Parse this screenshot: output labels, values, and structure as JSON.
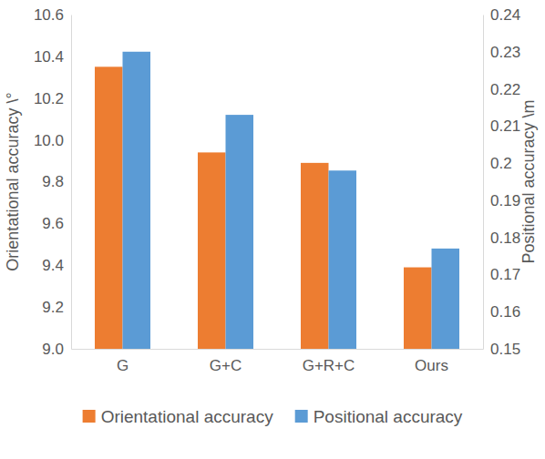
{
  "chart_data": {
    "type": "bar",
    "categories": [
      "G",
      "G+C",
      "G+R+C",
      "Ours"
    ],
    "series": [
      {
        "name": "Orientational accuracy",
        "color": "#ed7d31",
        "values": [
          10.35,
          9.94,
          9.89,
          9.39
        ]
      },
      {
        "name": "Positional accuracy",
        "color": "#5b9bd5",
        "values": [
          0.23,
          0.213,
          0.198,
          0.177
        ],
        "axis": "y2"
      }
    ],
    "y_label": "Orientational accuracy \\°",
    "y2_label": "Positional accuracy \\m",
    "ylim": [
      9.0,
      10.6
    ],
    "yticks": [
      {
        "value": 9,
        "label": "9.0"
      },
      9.2,
      9.4,
      9.6,
      9.8,
      {
        "value": 10,
        "label": "10.0"
      },
      10.2,
      10.4,
      10.6
    ],
    "y2lim": [
      0.15,
      0.24
    ],
    "y2ticks": [
      0.15,
      0.16,
      0.17,
      0.18,
      0.19,
      0.2,
      0.21,
      0.22,
      0.23,
      0.24
    ],
    "grid": false,
    "legend": "bottom"
  }
}
